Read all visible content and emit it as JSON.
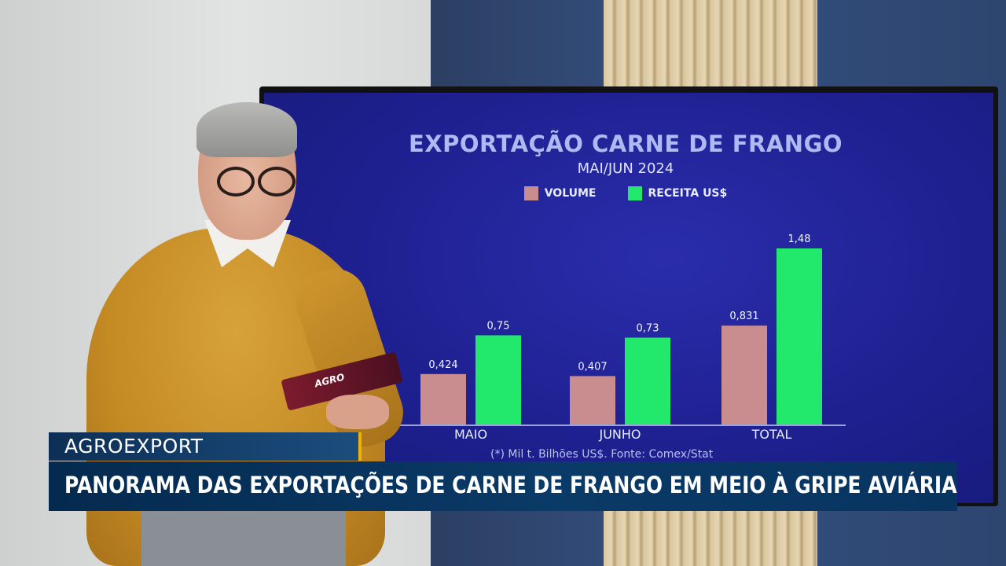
{
  "chart_data": {
    "type": "bar",
    "title": "EXPORTAÇÃO CARNE DE FRANGO",
    "subtitle": "MAI/JUN 2024",
    "categories": [
      "MAIO",
      "JUNHO",
      "TOTAL"
    ],
    "series": [
      {
        "name": "VOLUME",
        "color": "#c98d8f",
        "values": [
          0.424,
          0.407,
          0.831
        ],
        "labels": [
          "0,424",
          "0,407",
          "0,831"
        ]
      },
      {
        "name": "RECEITA US$",
        "color": "#22e86b",
        "values": [
          0.75,
          0.73,
          1.48
        ],
        "labels": [
          "0,75",
          "0,73",
          "1,48"
        ]
      }
    ],
    "note": "(*) Mil t. Bilhões US$. Fonte: Comex/Stat",
    "legend_position": "top-center",
    "grid": false
  },
  "tablet_label": "AGRO",
  "lower_third": {
    "tag": "AGROEXPORT",
    "headline": "PANORAMA DAS EXPORTAÇÕES DE CARNE DE FRANGO EM MEIO À GRIPE AVIÁRIA"
  },
  "colors": {
    "screen_bg": "#1e2090",
    "title": "#aebaf2",
    "lower_third_bg": "#0a3a67",
    "lower_third_accent": "#f0b400"
  }
}
